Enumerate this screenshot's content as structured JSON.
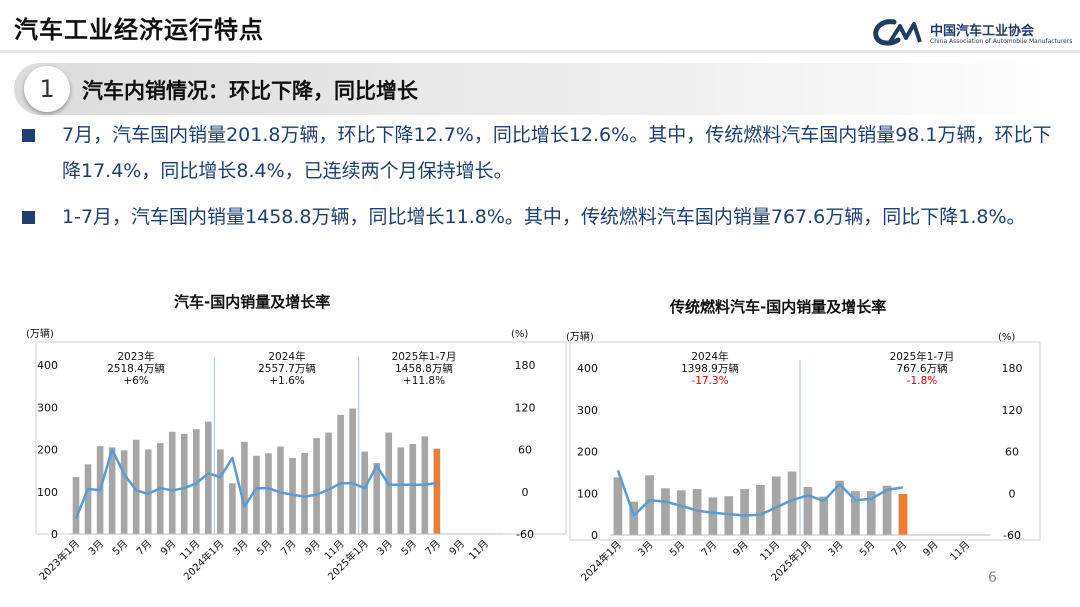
{
  "header": {
    "title": "汽车工业经济运行特点",
    "logo_cn": "中国汽车工业协会",
    "logo_en": "China Association of Automobile Manufacturers"
  },
  "section": {
    "number": "1",
    "title": "汽车内销情况：环比下降，同比增长"
  },
  "bullets": [
    "7月，汽车国内销量201.8万辆，环比下降12.7%，同比增长12.6%。其中，传统燃料汽车国内销量98.1万辆，环比下降17.4%，同比增长8.4%，已连续两个月保持增长。",
    "1-7月，汽车国内销量1458.8万辆，同比增长11.8%。其中，传统燃料汽车国内销量767.6万辆，同比下降1.8%。"
  ],
  "page_number": "6",
  "colors": {
    "bar": "#a6a6a6",
    "highlight": "#ed7d31",
    "line": "#5b9bd5",
    "divider": "#9dc3e6",
    "negative": "#e00000",
    "text_blue": "#1f3f72"
  },
  "chart_data": [
    {
      "type": "bar",
      "title": "汽车-国内销量及增长率",
      "ylabel": "(万辆)",
      "y2label": "(%)",
      "ylim": [
        0,
        400
      ],
      "yticks": [
        0,
        100,
        200,
        300,
        400
      ],
      "y2lim": [
        -60,
        180
      ],
      "y2ticks": [
        -60,
        0,
        60,
        120,
        180
      ],
      "tick_labels": [
        "2023年1月",
        "3月",
        "5月",
        "7月",
        "9月",
        "11月",
        "2024年1月",
        "3月",
        "5月",
        "7月",
        "9月",
        "11月",
        "2025年1月",
        "3月",
        "5月",
        "7月",
        "9月",
        "11月"
      ],
      "highlight_index": 30,
      "series": [
        {
          "kind": "bar",
          "values": [
            135,
            165,
            208,
            205,
            198,
            223,
            200,
            215,
            242,
            237,
            248,
            266,
            200,
            120,
            218,
            185,
            191,
            207,
            180,
            192,
            227,
            240,
            282,
            297,
            195,
            168,
            240,
            205,
            213,
            231,
            201.8,
            null,
            null,
            null,
            null,
            null
          ]
        },
        {
          "kind": "line",
          "values": [
            -38,
            4,
            2,
            60,
            25,
            2,
            -3,
            5,
            2,
            5,
            12,
            26,
            21,
            48,
            -21,
            5,
            5,
            -1,
            -4,
            -7,
            -4,
            3,
            12,
            12,
            5,
            37,
            10,
            10,
            10,
            10,
            12.6,
            null,
            null,
            null,
            null,
            null
          ]
        }
      ],
      "annotations": [
        {
          "lines": [
            "2023年",
            "2518.4万辆",
            "+6%"
          ],
          "color": "#111"
        },
        {
          "lines": [
            "2024年",
            "2557.7万辆",
            "+1.6%"
          ],
          "color": "#111"
        },
        {
          "lines": [
            "2025年1-7月",
            "1458.8万辆",
            "+11.8%"
          ],
          "color": "#111"
        }
      ]
    },
    {
      "type": "bar",
      "title": "传统燃料汽车-国内销量及增长率",
      "ylabel": "(万辆)",
      "y2label": "(%)",
      "ylim": [
        0,
        400
      ],
      "yticks": [
        0,
        100,
        200,
        300,
        400
      ],
      "y2lim": [
        -60,
        180
      ],
      "y2ticks": [
        -60,
        0,
        60,
        120,
        180
      ],
      "tick_labels": [
        "2024年1月",
        "3月",
        "5月",
        "7月",
        "9月",
        "11月",
        "2025年1月",
        "3月",
        "5月",
        "7月",
        "9月",
        "11月"
      ],
      "highlight_index": 18,
      "series": [
        {
          "kind": "bar",
          "values": [
            138,
            80,
            143,
            112,
            107,
            110,
            90,
            93,
            110,
            120,
            140,
            152,
            115,
            92,
            130,
            105,
            105,
            118,
            98.1,
            null,
            null,
            null,
            null,
            null
          ]
        },
        {
          "kind": "line",
          "values": [
            33,
            -32,
            -10,
            -12,
            -18,
            -25,
            -28,
            -30,
            -32,
            -31,
            -20,
            -10,
            -3,
            -11,
            13,
            -10,
            -8,
            5,
            8.4,
            null,
            null,
            null,
            null,
            null
          ]
        }
      ],
      "annotations": [
        {
          "lines": [
            "2024年",
            "1398.9万辆",
            "-17.3%"
          ],
          "color_last": "#e00000"
        },
        {
          "lines": [
            "2025年1-7月",
            "767.6万辆",
            "-1.8%"
          ],
          "color_last": "#e00000"
        }
      ]
    }
  ]
}
